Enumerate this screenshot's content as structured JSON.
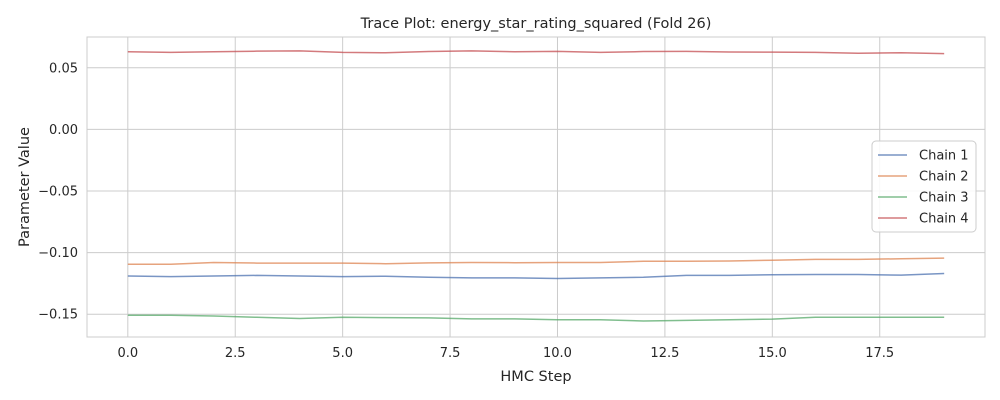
{
  "chart_data": {
    "type": "line",
    "title": "Trace Plot: energy_star_rating_squared (Fold 26)",
    "xlabel": "HMC Step",
    "ylabel": "Parameter Value",
    "xlim": [
      -0.95,
      19.95
    ],
    "ylim": [
      -0.1685,
      0.075
    ],
    "xticks": [
      0.0,
      2.5,
      5.0,
      7.5,
      10.0,
      12.5,
      15.0,
      17.5
    ],
    "xtick_labels": [
      "0.0",
      "2.5",
      "5.0",
      "7.5",
      "10.0",
      "12.5",
      "15.0",
      "17.5"
    ],
    "yticks": [
      0.05,
      0.0,
      -0.05,
      -0.1,
      -0.15
    ],
    "ytick_labels": [
      "0.05",
      "0.00",
      "−0.05",
      "−0.10",
      "−0.15"
    ],
    "grid": true,
    "legend_position": "right",
    "x": [
      0,
      1,
      2,
      3,
      4,
      5,
      6,
      7,
      8,
      9,
      10,
      11,
      12,
      13,
      14,
      15,
      16,
      17,
      18,
      19
    ],
    "series": [
      {
        "name": "Chain 1",
        "color": "#4c72b0",
        "values": [
          -0.119,
          -0.1195,
          -0.119,
          -0.1185,
          -0.119,
          -0.1195,
          -0.1192,
          -0.12,
          -0.1205,
          -0.1205,
          -0.121,
          -0.1205,
          -0.12,
          -0.1185,
          -0.1185,
          -0.118,
          -0.1178,
          -0.1178,
          -0.1183,
          -0.117
        ]
      },
      {
        "name": "Chain 2",
        "color": "#dd8452",
        "values": [
          -0.1095,
          -0.1095,
          -0.108,
          -0.1085,
          -0.1085,
          -0.1085,
          -0.109,
          -0.1083,
          -0.108,
          -0.1082,
          -0.108,
          -0.108,
          -0.107,
          -0.107,
          -0.1068,
          -0.1062,
          -0.1055,
          -0.1055,
          -0.105,
          -0.1045
        ]
      },
      {
        "name": "Chain 3",
        "color": "#55a868",
        "values": [
          -0.1508,
          -0.1508,
          -0.1515,
          -0.1525,
          -0.1535,
          -0.1525,
          -0.1528,
          -0.153,
          -0.1538,
          -0.1538,
          -0.1545,
          -0.1545,
          -0.1555,
          -0.155,
          -0.1545,
          -0.154,
          -0.1525,
          -0.1525,
          -0.1525,
          -0.1525
        ]
      },
      {
        "name": "Chain 4",
        "color": "#c44e52",
        "values": [
          0.063,
          0.0625,
          0.063,
          0.0635,
          0.0637,
          0.0625,
          0.0622,
          0.0632,
          0.0637,
          0.063,
          0.0633,
          0.0625,
          0.0632,
          0.0633,
          0.0628,
          0.0627,
          0.0625,
          0.0618,
          0.0622,
          0.0615
        ]
      }
    ]
  }
}
